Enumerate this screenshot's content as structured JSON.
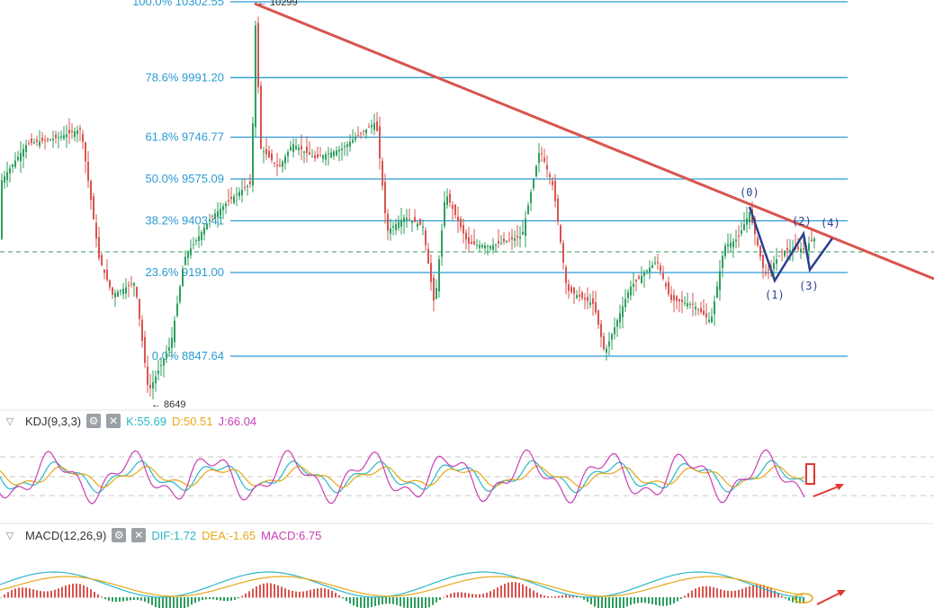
{
  "colors": {
    "up": "#2e9e5e",
    "down": "#d9544f",
    "fib": "#2b9bd3",
    "trendline": "#d9544f",
    "wave": "#2a3f8f",
    "kline": "#2bb7c7",
    "dline": "#e6a817",
    "jline": "#c93fb4",
    "dashed": "#2e9e5e",
    "annotation": "#e0392f"
  },
  "main": {
    "fib_levels": [
      {
        "label": "100.0% 10302.55",
        "value": 10302.55
      },
      {
        "label": "78.6% 9991.20",
        "value": 9991.2
      },
      {
        "label": "61.8% 9746.77",
        "value": 9746.77
      },
      {
        "label": "50.0% 9575.09",
        "value": 9575.09
      },
      {
        "label": "38.2% 9403.41",
        "value": 9403.41
      },
      {
        "label": "23.6% 9191.00",
        "value": 9191.0
      },
      {
        "label": "0.0% 8847.64",
        "value": 8847.64
      }
    ],
    "high_note": "← 10299",
    "low_note": "← 8649",
    "wave_labels": [
      "(0)",
      "(1)",
      "(2)",
      "(3)",
      "(4)"
    ]
  },
  "kdj": {
    "name": "KDJ(9,3,3)",
    "k_label": "K:55.69",
    "d_label": "D:50.51",
    "j_label": "J:66.04",
    "gear_icon": "gear-icon",
    "close_icon": "close-icon"
  },
  "macd": {
    "name": "MACD(12,26,9)",
    "dif_label": "DIF:1.72",
    "dea_label": "DEA:-1.65",
    "macd_label": "MACD:6.75",
    "gear_icon": "gear-icon",
    "close_icon": "close-icon"
  },
  "chart_data": {
    "type": "candlestick",
    "title": "",
    "ylim": [
      8600,
      10320
    ],
    "annotations": [
      "trendline",
      "elliott-wave (0)-(4)"
    ]
  }
}
